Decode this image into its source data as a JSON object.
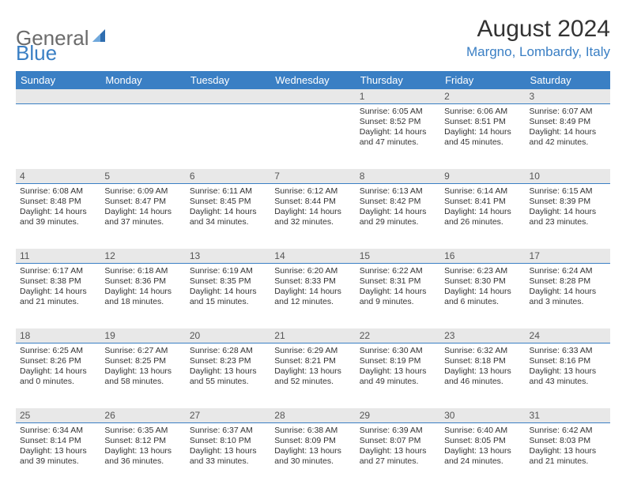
{
  "logo": {
    "general": "General",
    "blue": "Blue"
  },
  "header": {
    "month_title": "August 2024",
    "location": "Margno, Lombardy, Italy"
  },
  "calendar": {
    "day_headers": [
      "Sunday",
      "Monday",
      "Tuesday",
      "Wednesday",
      "Thursday",
      "Friday",
      "Saturday"
    ],
    "header_bg": "#3a7fc4",
    "header_fg": "#ffffff",
    "daynum_bg": "#e8e8e8",
    "border_color": "#3a7fc4",
    "weeks": [
      {
        "nums": [
          "",
          "",
          "",
          "",
          "1",
          "2",
          "3"
        ],
        "cells": [
          null,
          null,
          null,
          null,
          {
            "sunrise": "Sunrise: 6:05 AM",
            "sunset": "Sunset: 8:52 PM",
            "day1": "Daylight: 14 hours",
            "day2": "and 47 minutes."
          },
          {
            "sunrise": "Sunrise: 6:06 AM",
            "sunset": "Sunset: 8:51 PM",
            "day1": "Daylight: 14 hours",
            "day2": "and 45 minutes."
          },
          {
            "sunrise": "Sunrise: 6:07 AM",
            "sunset": "Sunset: 8:49 PM",
            "day1": "Daylight: 14 hours",
            "day2": "and 42 minutes."
          }
        ]
      },
      {
        "nums": [
          "4",
          "5",
          "6",
          "7",
          "8",
          "9",
          "10"
        ],
        "cells": [
          {
            "sunrise": "Sunrise: 6:08 AM",
            "sunset": "Sunset: 8:48 PM",
            "day1": "Daylight: 14 hours",
            "day2": "and 39 minutes."
          },
          {
            "sunrise": "Sunrise: 6:09 AM",
            "sunset": "Sunset: 8:47 PM",
            "day1": "Daylight: 14 hours",
            "day2": "and 37 minutes."
          },
          {
            "sunrise": "Sunrise: 6:11 AM",
            "sunset": "Sunset: 8:45 PM",
            "day1": "Daylight: 14 hours",
            "day2": "and 34 minutes."
          },
          {
            "sunrise": "Sunrise: 6:12 AM",
            "sunset": "Sunset: 8:44 PM",
            "day1": "Daylight: 14 hours",
            "day2": "and 32 minutes."
          },
          {
            "sunrise": "Sunrise: 6:13 AM",
            "sunset": "Sunset: 8:42 PM",
            "day1": "Daylight: 14 hours",
            "day2": "and 29 minutes."
          },
          {
            "sunrise": "Sunrise: 6:14 AM",
            "sunset": "Sunset: 8:41 PM",
            "day1": "Daylight: 14 hours",
            "day2": "and 26 minutes."
          },
          {
            "sunrise": "Sunrise: 6:15 AM",
            "sunset": "Sunset: 8:39 PM",
            "day1": "Daylight: 14 hours",
            "day2": "and 23 minutes."
          }
        ]
      },
      {
        "nums": [
          "11",
          "12",
          "13",
          "14",
          "15",
          "16",
          "17"
        ],
        "cells": [
          {
            "sunrise": "Sunrise: 6:17 AM",
            "sunset": "Sunset: 8:38 PM",
            "day1": "Daylight: 14 hours",
            "day2": "and 21 minutes."
          },
          {
            "sunrise": "Sunrise: 6:18 AM",
            "sunset": "Sunset: 8:36 PM",
            "day1": "Daylight: 14 hours",
            "day2": "and 18 minutes."
          },
          {
            "sunrise": "Sunrise: 6:19 AM",
            "sunset": "Sunset: 8:35 PM",
            "day1": "Daylight: 14 hours",
            "day2": "and 15 minutes."
          },
          {
            "sunrise": "Sunrise: 6:20 AM",
            "sunset": "Sunset: 8:33 PM",
            "day1": "Daylight: 14 hours",
            "day2": "and 12 minutes."
          },
          {
            "sunrise": "Sunrise: 6:22 AM",
            "sunset": "Sunset: 8:31 PM",
            "day1": "Daylight: 14 hours",
            "day2": "and 9 minutes."
          },
          {
            "sunrise": "Sunrise: 6:23 AM",
            "sunset": "Sunset: 8:30 PM",
            "day1": "Daylight: 14 hours",
            "day2": "and 6 minutes."
          },
          {
            "sunrise": "Sunrise: 6:24 AM",
            "sunset": "Sunset: 8:28 PM",
            "day1": "Daylight: 14 hours",
            "day2": "and 3 minutes."
          }
        ]
      },
      {
        "nums": [
          "18",
          "19",
          "20",
          "21",
          "22",
          "23",
          "24"
        ],
        "cells": [
          {
            "sunrise": "Sunrise: 6:25 AM",
            "sunset": "Sunset: 8:26 PM",
            "day1": "Daylight: 14 hours",
            "day2": "and 0 minutes."
          },
          {
            "sunrise": "Sunrise: 6:27 AM",
            "sunset": "Sunset: 8:25 PM",
            "day1": "Daylight: 13 hours",
            "day2": "and 58 minutes."
          },
          {
            "sunrise": "Sunrise: 6:28 AM",
            "sunset": "Sunset: 8:23 PM",
            "day1": "Daylight: 13 hours",
            "day2": "and 55 minutes."
          },
          {
            "sunrise": "Sunrise: 6:29 AM",
            "sunset": "Sunset: 8:21 PM",
            "day1": "Daylight: 13 hours",
            "day2": "and 52 minutes."
          },
          {
            "sunrise": "Sunrise: 6:30 AM",
            "sunset": "Sunset: 8:19 PM",
            "day1": "Daylight: 13 hours",
            "day2": "and 49 minutes."
          },
          {
            "sunrise": "Sunrise: 6:32 AM",
            "sunset": "Sunset: 8:18 PM",
            "day1": "Daylight: 13 hours",
            "day2": "and 46 minutes."
          },
          {
            "sunrise": "Sunrise: 6:33 AM",
            "sunset": "Sunset: 8:16 PM",
            "day1": "Daylight: 13 hours",
            "day2": "and 43 minutes."
          }
        ]
      },
      {
        "nums": [
          "25",
          "26",
          "27",
          "28",
          "29",
          "30",
          "31"
        ],
        "cells": [
          {
            "sunrise": "Sunrise: 6:34 AM",
            "sunset": "Sunset: 8:14 PM",
            "day1": "Daylight: 13 hours",
            "day2": "and 39 minutes."
          },
          {
            "sunrise": "Sunrise: 6:35 AM",
            "sunset": "Sunset: 8:12 PM",
            "day1": "Daylight: 13 hours",
            "day2": "and 36 minutes."
          },
          {
            "sunrise": "Sunrise: 6:37 AM",
            "sunset": "Sunset: 8:10 PM",
            "day1": "Daylight: 13 hours",
            "day2": "and 33 minutes."
          },
          {
            "sunrise": "Sunrise: 6:38 AM",
            "sunset": "Sunset: 8:09 PM",
            "day1": "Daylight: 13 hours",
            "day2": "and 30 minutes."
          },
          {
            "sunrise": "Sunrise: 6:39 AM",
            "sunset": "Sunset: 8:07 PM",
            "day1": "Daylight: 13 hours",
            "day2": "and 27 minutes."
          },
          {
            "sunrise": "Sunrise: 6:40 AM",
            "sunset": "Sunset: 8:05 PM",
            "day1": "Daylight: 13 hours",
            "day2": "and 24 minutes."
          },
          {
            "sunrise": "Sunrise: 6:42 AM",
            "sunset": "Sunset: 8:03 PM",
            "day1": "Daylight: 13 hours",
            "day2": "and 21 minutes."
          }
        ]
      }
    ]
  }
}
